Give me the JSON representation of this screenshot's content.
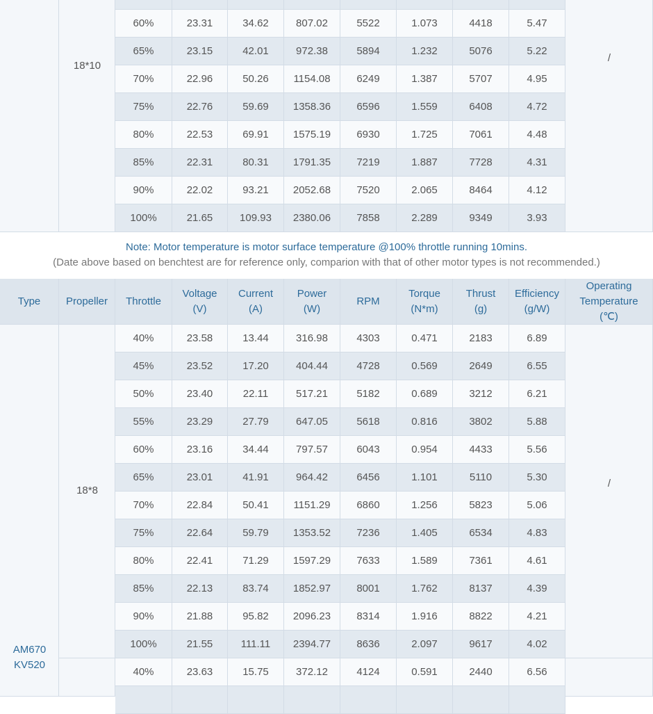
{
  "top_table": {
    "propeller": "18*10",
    "operating_temperature": "/",
    "rows": [
      [
        "60%",
        "23.31",
        "34.62",
        "807.02",
        "5522",
        "1.073",
        "4418",
        "5.47"
      ],
      [
        "65%",
        "23.15",
        "42.01",
        "972.38",
        "5894",
        "1.232",
        "5076",
        "5.22"
      ],
      [
        "70%",
        "22.96",
        "50.26",
        "1154.08",
        "6249",
        "1.387",
        "5707",
        "4.95"
      ],
      [
        "75%",
        "22.76",
        "59.69",
        "1358.36",
        "6596",
        "1.559",
        "6408",
        "4.72"
      ],
      [
        "80%",
        "22.53",
        "69.91",
        "1575.19",
        "6930",
        "1.725",
        "7061",
        "4.48"
      ],
      [
        "85%",
        "22.31",
        "80.31",
        "1791.35",
        "7219",
        "1.887",
        "7728",
        "4.31"
      ],
      [
        "90%",
        "22.02",
        "93.21",
        "2052.68",
        "7520",
        "2.065",
        "8464",
        "4.12"
      ],
      [
        "100%",
        "21.65",
        "109.93",
        "2380.06",
        "7858",
        "2.289",
        "9349",
        "3.93"
      ]
    ]
  },
  "note": {
    "line1": "Note: Motor temperature is motor surface temperature @100% throttle running 10mins.",
    "line2": "(Date above based on benchtest are for reference only, comparion with that of other motor types is not recommended.)"
  },
  "table": {
    "headers": [
      [
        "Type"
      ],
      [
        "Propeller"
      ],
      [
        "Throttle"
      ],
      [
        "Voltage",
        "(V)"
      ],
      [
        "Current",
        "(A)"
      ],
      [
        "Power",
        "(W)"
      ],
      [
        "RPM"
      ],
      [
        "Torque",
        "(N*m)"
      ],
      [
        "Thrust",
        "(g)"
      ],
      [
        "Efficiency",
        "(g/W)"
      ],
      [
        "Operating",
        "Temperature",
        "(℃)"
      ]
    ],
    "type": [
      "AM670",
      "KV520"
    ],
    "groups": [
      {
        "propeller": "18*8",
        "operating_temperature": "/",
        "rows": [
          [
            "40%",
            "23.58",
            "13.44",
            "316.98",
            "4303",
            "0.471",
            "2183",
            "6.89"
          ],
          [
            "45%",
            "23.52",
            "17.20",
            "404.44",
            "4728",
            "0.569",
            "2649",
            "6.55"
          ],
          [
            "50%",
            "23.40",
            "22.11",
            "517.21",
            "5182",
            "0.689",
            "3212",
            "6.21"
          ],
          [
            "55%",
            "23.29",
            "27.79",
            "647.05",
            "5618",
            "0.816",
            "3802",
            "5.88"
          ],
          [
            "60%",
            "23.16",
            "34.44",
            "797.57",
            "6043",
            "0.954",
            "4433",
            "5.56"
          ],
          [
            "65%",
            "23.01",
            "41.91",
            "964.42",
            "6456",
            "1.101",
            "5110",
            "5.30"
          ],
          [
            "70%",
            "22.84",
            "50.41",
            "1151.29",
            "6860",
            "1.256",
            "5823",
            "5.06"
          ],
          [
            "75%",
            "22.64",
            "59.79",
            "1353.52",
            "7236",
            "1.405",
            "6534",
            "4.83"
          ],
          [
            "80%",
            "22.41",
            "71.29",
            "1597.29",
            "7633",
            "1.589",
            "7361",
            "4.61"
          ],
          [
            "85%",
            "22.13",
            "83.74",
            "1852.97",
            "8001",
            "1.762",
            "8137",
            "4.39"
          ],
          [
            "90%",
            "21.88",
            "95.82",
            "2096.23",
            "8314",
            "1.916",
            "8822",
            "4.21"
          ],
          [
            "100%",
            "21.55",
            "111.11",
            "2394.77",
            "8636",
            "2.097",
            "9617",
            "4.02"
          ]
        ]
      },
      {
        "rows": [
          [
            "40%",
            "23.63",
            "15.75",
            "372.12",
            "4124",
            "0.591",
            "2440",
            "6.56"
          ]
        ]
      }
    ]
  }
}
